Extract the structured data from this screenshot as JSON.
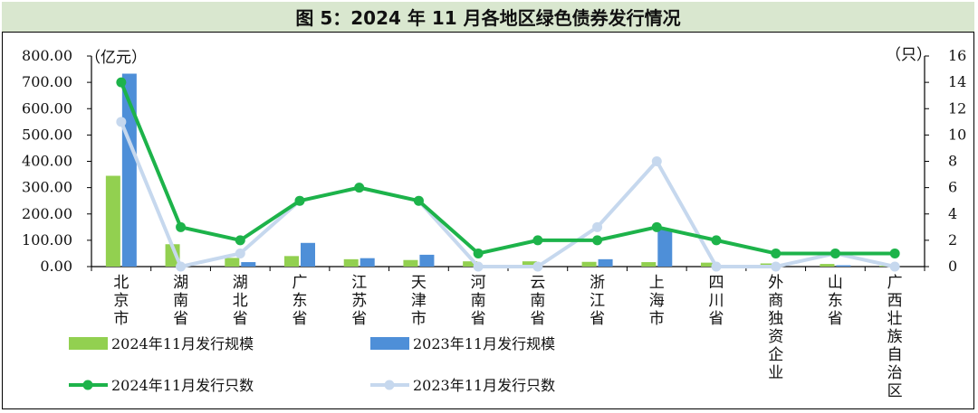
{
  "title": "图 5：2024 年 11 月各地区绿色债券发行情况",
  "colors": {
    "bar2024": "#92d050",
    "bar2023": "#4e8fd8",
    "line2024": "#1db34a",
    "line2023": "#c6d8ee",
    "titleBg": "#d9e7cf"
  },
  "chart_data": {
    "type": "bar",
    "categories": [
      "北京市",
      "湖南省",
      "湖北省",
      "广东省",
      "江苏省",
      "天津市",
      "河南省",
      "云南省",
      "浙江省",
      "上海市",
      "四川省",
      "外商独资企业",
      "山东省",
      "广西壮族自治区"
    ],
    "y_left_label": "（亿元）",
    "y_right_label": "（只）",
    "ylim_left": [
      0,
      800
    ],
    "ylim_right": [
      0,
      16
    ],
    "y_left_ticks": [
      "0.00",
      "100.00",
      "200.00",
      "300.00",
      "400.00",
      "500.00",
      "600.00",
      "700.00",
      "800.00"
    ],
    "y_right_ticks": [
      "0",
      "2",
      "4",
      "6",
      "8",
      "10",
      "12",
      "14",
      "16"
    ],
    "series": [
      {
        "name": "2024年11月发行规模",
        "kind": "bar",
        "axis": "left",
        "values": [
          345,
          85,
          33,
          40,
          28,
          25,
          20,
          20,
          18,
          17,
          15,
          12,
          10,
          3
        ]
      },
      {
        "name": "2023年11月发行规模",
        "kind": "bar",
        "axis": "left",
        "values": [
          733,
          0,
          17,
          90,
          32,
          45,
          0,
          0,
          28,
          140,
          0,
          0,
          5,
          0
        ]
      },
      {
        "name": "2024年11月发行只数",
        "kind": "line",
        "axis": "right",
        "values": [
          14,
          3,
          2,
          5,
          6,
          5,
          1,
          2,
          2,
          3,
          2,
          1,
          1,
          1
        ]
      },
      {
        "name": "2023年11月发行只数",
        "kind": "line",
        "axis": "right",
        "values": [
          11,
          0,
          1,
          5,
          6,
          5,
          0,
          0,
          3,
          8,
          0,
          0,
          1,
          0
        ]
      }
    ],
    "legend_placement": "bottom"
  }
}
